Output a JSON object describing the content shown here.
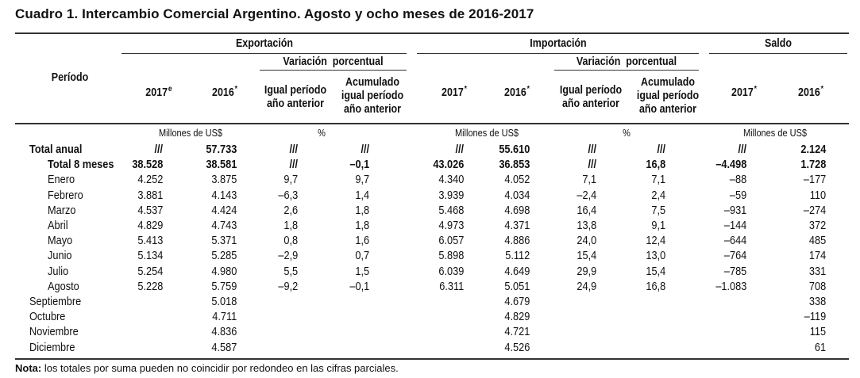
{
  "title": "Cuadro 1. Intercambio Comercial Argentino. Agosto y ocho meses de 2016-2017",
  "headers": {
    "periodo": "Período",
    "exportacion": "Exportación",
    "importacion": "Importación",
    "saldo": "Saldo",
    "variacion": "Variación  porcentual",
    "igual_periodo_l1": "Igual período",
    "igual_periodo_l2": "año anterior",
    "acumulado_l1": "Acumulado",
    "acumulado_l2": "igual período",
    "acumulado_l3": "año anterior",
    "exp_2017": "2017",
    "exp_2017_sup": "e",
    "exp_2016": "2016",
    "imp_2017": "2017",
    "imp_2016": "2016",
    "saldo_2017": "2017",
    "saldo_2016": "2016",
    "star": "*"
  },
  "units": {
    "exp_millones": "Millones de US$",
    "exp_pct": "%",
    "imp_millones": "Millones de US$",
    "imp_pct": "%",
    "saldo_millones": "Millones de US$"
  },
  "rows": [
    {
      "label": "Total anual",
      "bold": true,
      "indent": false,
      "cells": [
        "///",
        "57.733",
        "///",
        "///",
        "///",
        "55.610",
        "///",
        "///",
        "///",
        "2.124"
      ]
    },
    {
      "label": "Total 8 meses",
      "bold": true,
      "indent": true,
      "cells": [
        "38.528",
        "38.581",
        "///",
        "–0,1",
        "43.026",
        "36.853",
        "///",
        "16,8",
        "–4.498",
        "1.728"
      ]
    },
    {
      "label": "Enero",
      "bold": false,
      "indent": true,
      "cells": [
        "4.252",
        "3.875",
        "9,7",
        "9,7",
        "4.340",
        "4.052",
        "7,1",
        "7,1",
        "–88",
        "–177"
      ]
    },
    {
      "label": "Febrero",
      "bold": false,
      "indent": true,
      "cells": [
        "3.881",
        "4.143",
        "–6,3",
        "1,4",
        "3.939",
        "4.034",
        "–2,4",
        "2,4",
        "–59",
        "110"
      ]
    },
    {
      "label": "Marzo",
      "bold": false,
      "indent": true,
      "cells": [
        "4.537",
        "4.424",
        "2,6",
        "1,8",
        "5.468",
        "4.698",
        "16,4",
        "7,5",
        "–931",
        "–274"
      ]
    },
    {
      "label": "Abril",
      "bold": false,
      "indent": true,
      "cells": [
        "4.829",
        "4.743",
        "1,8",
        "1,8",
        "4.973",
        "4.371",
        "13,8",
        "9,1",
        "–144",
        "372"
      ]
    },
    {
      "label": "Mayo",
      "bold": false,
      "indent": true,
      "cells": [
        "5.413",
        "5.371",
        "0,8",
        "1,6",
        "6.057",
        "4.886",
        "24,0",
        "12,4",
        "–644",
        "485"
      ]
    },
    {
      "label": "Junio",
      "bold": false,
      "indent": true,
      "cells": [
        "5.134",
        "5.285",
        "–2,9",
        "0,7",
        "5.898",
        "5.112",
        "15,4",
        "13,0",
        "–764",
        "174"
      ]
    },
    {
      "label": "Julio",
      "bold": false,
      "indent": true,
      "cells": [
        "5.254",
        "4.980",
        "5,5",
        "1,5",
        "6.039",
        "4.649",
        "29,9",
        "15,4",
        "–785",
        "331"
      ]
    },
    {
      "label": "Agosto",
      "bold": false,
      "indent": true,
      "cells": [
        "5.228",
        "5.759",
        "–9,2",
        "–0,1",
        "6.311",
        "5.051",
        "24,9",
        "16,8",
        "–1.083",
        "708"
      ]
    },
    {
      "label": "Septiembre",
      "bold": false,
      "indent": false,
      "cells": [
        "",
        "5.018",
        "",
        "",
        "",
        "4.679",
        "",
        "",
        "",
        "338"
      ]
    },
    {
      "label": "Octubre",
      "bold": false,
      "indent": false,
      "cells": [
        "",
        "4.711",
        "",
        "",
        "",
        "4.829",
        "",
        "",
        "",
        "–119"
      ]
    },
    {
      "label": "Noviembre",
      "bold": false,
      "indent": false,
      "cells": [
        "",
        "4.836",
        "",
        "",
        "",
        "4.721",
        "",
        "",
        "",
        "115"
      ]
    },
    {
      "label": "Diciembre",
      "bold": false,
      "indent": false,
      "cells": [
        "",
        "4.587",
        "",
        "",
        "",
        "4.526",
        "",
        "",
        "",
        "61"
      ]
    }
  ],
  "note": {
    "label": "Nota:",
    "text": " los totales por suma pueden no coincidir por redondeo en las cifras parciales."
  }
}
